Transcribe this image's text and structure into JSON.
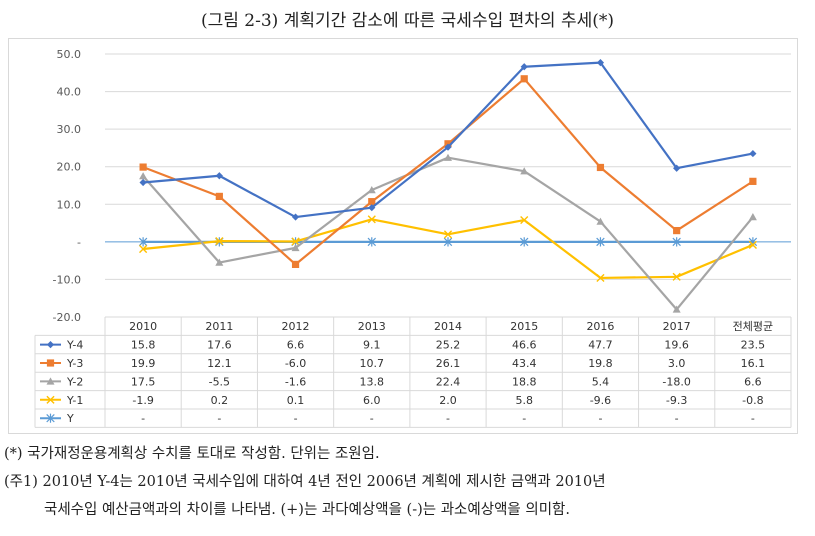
{
  "title": "(그림 2-3) 계획기간 감소에 따른 국세수입 편차의 추세(*)",
  "notes": [
    "(*) 국가재정운용계획상 수치를 토대로 작성함. 단위는 조원임.",
    "(주1) 2010년 Y-4는 2010년 국세수입에 대하여 4년 전인 2006년 계획에 제시한 금액과 2010년",
    "국세수입 예산금액과의 차이를 나타냄. (+)는 과다예상액을 (-)는 과소예상액을 의미함."
  ],
  "colors": {
    "Y-4": "#4472c4",
    "Y-3": "#ed7d31",
    "Y-2": "#a5a5a5",
    "Y-1": "#ffc000",
    "Y": "#5b9bd5",
    "grid": "#d9d9d9",
    "axis_text": "#595959"
  },
  "chart_data": {
    "type": "line",
    "title": "(그림 2-3) 계획기간 감소에 따른 국세수입 편차의 추세(*)",
    "categories": [
      "2010",
      "2011",
      "2012",
      "2013",
      "2014",
      "2015",
      "2016",
      "2017",
      "전체평균"
    ],
    "ylim": [
      -20,
      50
    ],
    "yticks": [
      50,
      40,
      30,
      20,
      10,
      0,
      -10,
      -20
    ],
    "ytick_labels": [
      "50.0",
      "40.0",
      "30.0",
      "20.0",
      "10.0",
      "-",
      "-10.0",
      "-20.0"
    ],
    "xlabel": "",
    "ylabel": "",
    "grid": true,
    "series": [
      {
        "name": "Y-4",
        "marker": "diamond",
        "values": [
          15.8,
          17.6,
          6.6,
          9.1,
          25.2,
          46.6,
          47.7,
          19.6,
          23.5
        ],
        "labels": [
          "15.8",
          "17.6",
          "6.6",
          "9.1",
          "25.2",
          "46.6",
          "47.7",
          "19.6",
          "23.5"
        ]
      },
      {
        "name": "Y-3",
        "marker": "square",
        "values": [
          19.9,
          12.1,
          -6.0,
          10.7,
          26.1,
          43.4,
          19.8,
          3.0,
          16.1
        ],
        "labels": [
          "19.9",
          "12.1",
          "-6.0",
          "10.7",
          "26.1",
          "43.4",
          "19.8",
          "3.0",
          "16.1"
        ]
      },
      {
        "name": "Y-2",
        "marker": "triangle",
        "values": [
          17.5,
          -5.5,
          -1.6,
          13.8,
          22.4,
          18.8,
          5.4,
          -18.0,
          6.6
        ],
        "labels": [
          "17.5",
          "-5.5",
          "-1.6",
          "13.8",
          "22.4",
          "18.8",
          "5.4",
          "-18.0",
          "6.6"
        ]
      },
      {
        "name": "Y-1",
        "marker": "cross",
        "values": [
          -1.9,
          0.2,
          0.1,
          6.0,
          2.0,
          5.8,
          -9.6,
          -9.3,
          -0.8
        ],
        "labels": [
          "-1.9",
          "0.2",
          "0.1",
          "6.0",
          "2.0",
          "5.8",
          "-9.6",
          "-9.3",
          "-0.8"
        ]
      },
      {
        "name": "Y",
        "marker": "star",
        "values": [
          0,
          0,
          0,
          0,
          0,
          0,
          0,
          0,
          0
        ],
        "labels": [
          "-",
          "-",
          "-",
          "-",
          "-",
          "-",
          "-",
          "-",
          "-"
        ]
      }
    ]
  }
}
